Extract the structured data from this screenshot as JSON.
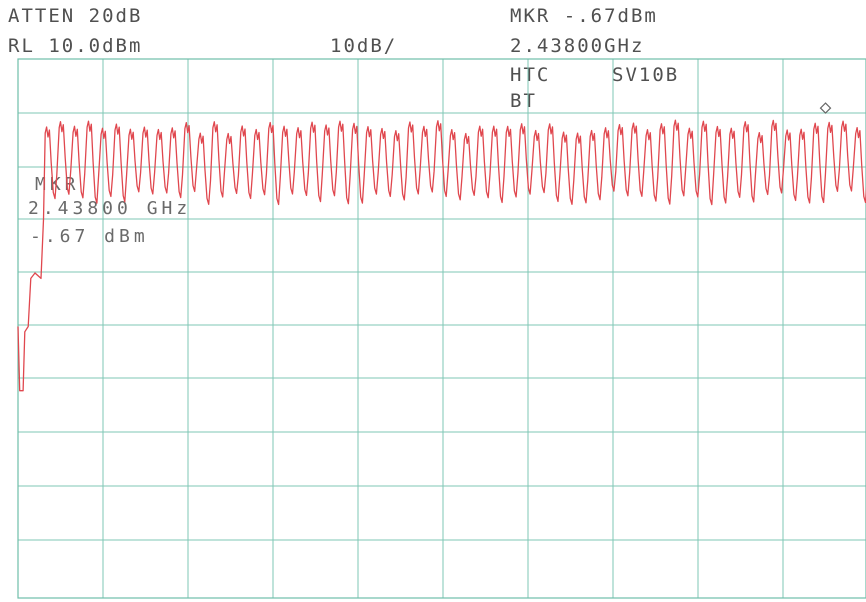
{
  "header": {
    "atten": "ATTEN 20dB",
    "ref_level": "RL 10.0dBm",
    "scale": "10dB/",
    "marker_amplitude": "MKR -.67dBm",
    "marker_frequency": "2.43800GHz",
    "device": "HTC",
    "model": "SV10B",
    "mode": "BT"
  },
  "marker_readout": {
    "label": "MKR",
    "frequency": "2.43800 GHz",
    "amplitude": "-.67 dBm"
  },
  "colors": {
    "trace": "#e0474e",
    "grid": "#7fc7b6",
    "text": "#505050"
  },
  "chart_data": {
    "type": "line",
    "title": "",
    "xlabel": "",
    "ylabel": "",
    "reference_level_dBm": 10.0,
    "scale_dB_per_div": 10,
    "ylim": [
      -90,
      10
    ],
    "y_divisions": 10,
    "x_divisions": 10,
    "xlim": [
      0,
      10
    ],
    "grid": true,
    "series": [
      {
        "description_points": "x in horizontal divisions, y in dBm",
        "onset": [
          [
            0,
            -40
          ],
          [
            0.02,
            -52
          ],
          [
            0.06,
            -52
          ],
          [
            0.08,
            -41
          ],
          [
            0.12,
            -40
          ],
          [
            0.15,
            -31
          ],
          [
            0.2,
            -30
          ],
          [
            0.27,
            -31
          ],
          [
            0.3,
            -20
          ]
        ],
        "burst_start_div": 0.3,
        "burst_end_div": 10.0,
        "cycles": 59,
        "peak_dBm": -0.67,
        "trough_dBm": -15
      }
    ],
    "marker": {
      "frequency_GHz": 2.438,
      "amplitude_dBm": -0.67,
      "x_div": 9.5
    }
  }
}
